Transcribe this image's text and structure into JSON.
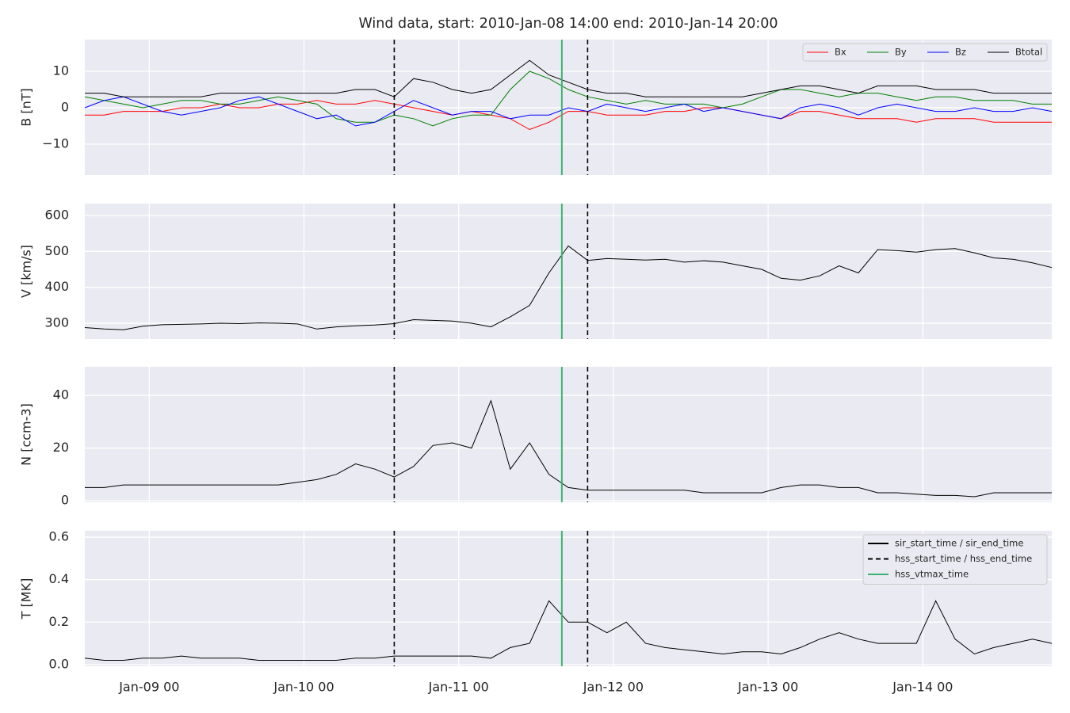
{
  "chart_data": [
    {
      "type": "line",
      "title": "Wind data, start: 2010-Jan-08 14:00  end: 2010-Jan-14 20:00",
      "ylabel": "B [nT]",
      "x": [
        "2010-01-08 14:00",
        "2010-01-08 17:00",
        "2010-01-08 20:00",
        "2010-01-08 23:00",
        "2010-01-09 02:00",
        "2010-01-09 05:00",
        "2010-01-09 08:00",
        "2010-01-09 11:00",
        "2010-01-09 14:00",
        "2010-01-09 17:00",
        "2010-01-09 20:00",
        "2010-01-09 23:00",
        "2010-01-10 02:00",
        "2010-01-10 05:00",
        "2010-01-10 08:00",
        "2010-01-10 11:00",
        "2010-01-10 14:00",
        "2010-01-10 17:00",
        "2010-01-10 20:00",
        "2010-01-10 23:00",
        "2010-01-11 02:00",
        "2010-01-11 05:00",
        "2010-01-11 08:00",
        "2010-01-11 11:00",
        "2010-01-11 14:00",
        "2010-01-11 17:00",
        "2010-01-11 20:00",
        "2010-01-11 23:00",
        "2010-01-12 02:00",
        "2010-01-12 05:00",
        "2010-01-12 08:00",
        "2010-01-12 11:00",
        "2010-01-12 14:00",
        "2010-01-12 17:00",
        "2010-01-12 20:00",
        "2010-01-12 23:00",
        "2010-01-13 02:00",
        "2010-01-13 05:00",
        "2010-01-13 08:00",
        "2010-01-13 11:00",
        "2010-01-13 14:00",
        "2010-01-13 17:00",
        "2010-01-13 20:00",
        "2010-01-13 23:00",
        "2010-01-14 02:00",
        "2010-01-14 05:00",
        "2010-01-14 08:00",
        "2010-01-14 11:00",
        "2010-01-14 14:00",
        "2010-01-14 17:00",
        "2010-01-14 20:00"
      ],
      "series": [
        {
          "name": "Bx",
          "color": "#ff0000",
          "values": [
            -2,
            -2,
            -1,
            -1,
            -1,
            0,
            0,
            1,
            0,
            0,
            1,
            1,
            2,
            1,
            1,
            2,
            1,
            0,
            -1,
            -2,
            -1,
            -2,
            -3,
            -6,
            -4,
            -1,
            -1,
            -2,
            -2,
            -2,
            -1,
            -1,
            0,
            0,
            -1,
            -2,
            -3,
            -1,
            -1,
            -2,
            -3,
            -3,
            -3,
            -4,
            -3,
            -3,
            -3,
            -4,
            -4,
            -4,
            -4
          ]
        },
        {
          "name": "By",
          "color": "#008000",
          "values": [
            3,
            2,
            1,
            0,
            1,
            2,
            2,
            1,
            1,
            2,
            3,
            2,
            1,
            -3,
            -4,
            -4,
            -2,
            -3,
            -5,
            -3,
            -2,
            -2,
            5,
            10,
            8,
            5,
            3,
            2,
            1,
            2,
            1,
            1,
            1,
            0,
            1,
            3,
            5,
            5,
            4,
            3,
            4,
            4,
            3,
            2,
            3,
            3,
            2,
            2,
            2,
            1,
            1
          ]
        },
        {
          "name": "Bz",
          "color": "#0000ff",
          "values": [
            0,
            2,
            3,
            1,
            -1,
            -2,
            -1,
            0,
            2,
            3,
            1,
            -1,
            -3,
            -2,
            -5,
            -4,
            -1,
            2,
            0,
            -2,
            -1,
            -1,
            -3,
            -2,
            -2,
            0,
            -1,
            1,
            0,
            -1,
            0,
            1,
            -1,
            0,
            -1,
            -2,
            -3,
            0,
            1,
            0,
            -2,
            0,
            1,
            0,
            -1,
            -1,
            0,
            -1,
            -1,
            0,
            -1
          ]
        },
        {
          "name": "Btotal",
          "color": "#000000",
          "values": [
            4,
            4,
            3,
            3,
            3,
            3,
            3,
            4,
            4,
            4,
            4,
            4,
            4,
            4,
            5,
            5,
            3,
            8,
            7,
            5,
            4,
            5,
            9,
            13,
            9,
            7,
            5,
            4,
            4,
            3,
            3,
            3,
            3,
            3,
            3,
            4,
            5,
            6,
            6,
            5,
            4,
            6,
            6,
            6,
            5,
            5,
            5,
            4,
            4,
            4,
            4
          ]
        }
      ],
      "xlim": [
        "2010-01-08 14:00",
        "2010-01-14 20:00"
      ],
      "xticks": [
        "2010-01-09 00:00",
        "2010-01-10 00:00",
        "2010-01-11 00:00",
        "2010-01-12 00:00",
        "2010-01-13 00:00",
        "2010-01-14 00:00"
      ],
      "ylim": [
        -18.5,
        18.7
      ],
      "yticks": [
        {
          "value": -10,
          "label": "−10"
        },
        0,
        10
      ],
      "grid": true,
      "legend": "upper right",
      "vlines": [
        {
          "x": "2010-01-10 14:00",
          "style": "dashed",
          "color": "#000000"
        },
        {
          "x": "2010-01-11 20:00",
          "style": "dashed",
          "color": "#000000"
        },
        {
          "x": "2010-01-11 16:00",
          "style": "solid",
          "color": "#3cb371"
        }
      ]
    },
    {
      "type": "line",
      "ylabel": "V [km/s]",
      "x": [
        "2010-01-08 14:00",
        "2010-01-08 17:00",
        "2010-01-08 20:00",
        "2010-01-08 23:00",
        "2010-01-09 02:00",
        "2010-01-09 05:00",
        "2010-01-09 08:00",
        "2010-01-09 11:00",
        "2010-01-09 14:00",
        "2010-01-09 17:00",
        "2010-01-09 20:00",
        "2010-01-09 23:00",
        "2010-01-10 02:00",
        "2010-01-10 05:00",
        "2010-01-10 08:00",
        "2010-01-10 11:00",
        "2010-01-10 14:00",
        "2010-01-10 17:00",
        "2010-01-10 20:00",
        "2010-01-10 23:00",
        "2010-01-11 02:00",
        "2010-01-11 05:00",
        "2010-01-11 08:00",
        "2010-01-11 11:00",
        "2010-01-11 14:00",
        "2010-01-11 17:00",
        "2010-01-11 20:00",
        "2010-01-11 23:00",
        "2010-01-12 02:00",
        "2010-01-12 05:00",
        "2010-01-12 08:00",
        "2010-01-12 11:00",
        "2010-01-12 14:00",
        "2010-01-12 17:00",
        "2010-01-12 20:00",
        "2010-01-12 23:00",
        "2010-01-13 02:00",
        "2010-01-13 05:00",
        "2010-01-13 08:00",
        "2010-01-13 11:00",
        "2010-01-13 14:00",
        "2010-01-13 17:00",
        "2010-01-13 20:00",
        "2010-01-13 23:00",
        "2010-01-14 02:00",
        "2010-01-14 05:00",
        "2010-01-14 08:00",
        "2010-01-14 11:00",
        "2010-01-14 14:00",
        "2010-01-14 17:00",
        "2010-01-14 20:00"
      ],
      "series": [
        {
          "color": "#000000",
          "values": [
            288,
            284,
            282,
            292,
            296,
            297,
            298,
            300,
            299,
            301,
            300,
            298,
            284,
            290,
            293,
            295,
            299,
            310,
            308,
            306,
            300,
            290,
            318,
            350,
            440,
            515,
            475,
            480,
            478,
            476,
            478,
            470,
            474,
            470,
            460,
            450,
            425,
            420,
            432,
            460,
            440,
            505,
            502,
            498,
            505,
            508,
            496,
            482,
            478,
            468,
            455
          ]
        }
      ],
      "xlim": [
        "2010-01-08 14:00",
        "2010-01-14 20:00"
      ],
      "xticks": [
        "2010-01-09 00:00",
        "2010-01-10 00:00",
        "2010-01-11 00:00",
        "2010-01-12 00:00",
        "2010-01-13 00:00",
        "2010-01-14 00:00"
      ],
      "ylim": [
        256,
        633
      ],
      "yticks": [
        300,
        400,
        500,
        600
      ],
      "grid": true,
      "vlines": [
        {
          "x": "2010-01-10 14:00",
          "style": "dashed",
          "color": "#000000"
        },
        {
          "x": "2010-01-11 20:00",
          "style": "dashed",
          "color": "#000000"
        },
        {
          "x": "2010-01-11 16:00",
          "style": "solid",
          "color": "#3cb371"
        }
      ]
    },
    {
      "type": "line",
      "ylabel": "N [ccm-3]",
      "x": [
        "2010-01-08 14:00",
        "2010-01-08 17:00",
        "2010-01-08 20:00",
        "2010-01-08 23:00",
        "2010-01-09 02:00",
        "2010-01-09 05:00",
        "2010-01-09 08:00",
        "2010-01-09 11:00",
        "2010-01-09 14:00",
        "2010-01-09 17:00",
        "2010-01-09 20:00",
        "2010-01-09 23:00",
        "2010-01-10 02:00",
        "2010-01-10 05:00",
        "2010-01-10 08:00",
        "2010-01-10 11:00",
        "2010-01-10 14:00",
        "2010-01-10 17:00",
        "2010-01-10 20:00",
        "2010-01-10 23:00",
        "2010-01-11 02:00",
        "2010-01-11 05:00",
        "2010-01-11 08:00",
        "2010-01-11 11:00",
        "2010-01-11 14:00",
        "2010-01-11 17:00",
        "2010-01-11 20:00",
        "2010-01-11 23:00",
        "2010-01-12 02:00",
        "2010-01-12 05:00",
        "2010-01-12 08:00",
        "2010-01-12 11:00",
        "2010-01-12 14:00",
        "2010-01-12 17:00",
        "2010-01-12 20:00",
        "2010-01-12 23:00",
        "2010-01-13 02:00",
        "2010-01-13 05:00",
        "2010-01-13 08:00",
        "2010-01-13 11:00",
        "2010-01-13 14:00",
        "2010-01-13 17:00",
        "2010-01-13 20:00",
        "2010-01-13 23:00",
        "2010-01-14 02:00",
        "2010-01-14 05:00",
        "2010-01-14 08:00",
        "2010-01-14 11:00",
        "2010-01-14 14:00",
        "2010-01-14 17:00",
        "2010-01-14 20:00"
      ],
      "series": [
        {
          "color": "#000000",
          "values": [
            5,
            5,
            6,
            6,
            6,
            6,
            6,
            6,
            6,
            6,
            6,
            7,
            8,
            10,
            14,
            12,
            9,
            13,
            21,
            22,
            20,
            38,
            12,
            22,
            10,
            5,
            4,
            4,
            4,
            4,
            4,
            4,
            3,
            3,
            3,
            3,
            5,
            6,
            6,
            5,
            5,
            3,
            3,
            2.5,
            2,
            2,
            1.5,
            3,
            3,
            3,
            3
          ]
        }
      ],
      "xlim": [
        "2010-01-08 14:00",
        "2010-01-14 20:00"
      ],
      "xticks": [
        "2010-01-09 00:00",
        "2010-01-10 00:00",
        "2010-01-11 00:00",
        "2010-01-12 00:00",
        "2010-01-13 00:00",
        "2010-01-14 00:00"
      ],
      "ylim": [
        -0.6,
        50.9
      ],
      "yticks": [
        0,
        20,
        40
      ],
      "grid": true,
      "vlines": [
        {
          "x": "2010-01-10 14:00",
          "style": "dashed",
          "color": "#000000"
        },
        {
          "x": "2010-01-11 20:00",
          "style": "dashed",
          "color": "#000000"
        },
        {
          "x": "2010-01-11 16:00",
          "style": "solid",
          "color": "#3cb371"
        }
      ]
    },
    {
      "type": "line",
      "ylabel": "T [MK]",
      "x": [
        "2010-01-08 14:00",
        "2010-01-08 17:00",
        "2010-01-08 20:00",
        "2010-01-08 23:00",
        "2010-01-09 02:00",
        "2010-01-09 05:00",
        "2010-01-09 08:00",
        "2010-01-09 11:00",
        "2010-01-09 14:00",
        "2010-01-09 17:00",
        "2010-01-09 20:00",
        "2010-01-09 23:00",
        "2010-01-10 02:00",
        "2010-01-10 05:00",
        "2010-01-10 08:00",
        "2010-01-10 11:00",
        "2010-01-10 14:00",
        "2010-01-10 17:00",
        "2010-01-10 20:00",
        "2010-01-10 23:00",
        "2010-01-11 02:00",
        "2010-01-11 05:00",
        "2010-01-11 08:00",
        "2010-01-11 11:00",
        "2010-01-11 14:00",
        "2010-01-11 17:00",
        "2010-01-11 20:00",
        "2010-01-11 23:00",
        "2010-01-12 02:00",
        "2010-01-12 05:00",
        "2010-01-12 08:00",
        "2010-01-12 11:00",
        "2010-01-12 14:00",
        "2010-01-12 17:00",
        "2010-01-12 20:00",
        "2010-01-12 23:00",
        "2010-01-13 02:00",
        "2010-01-13 05:00",
        "2010-01-13 08:00",
        "2010-01-13 11:00",
        "2010-01-13 14:00",
        "2010-01-13 17:00",
        "2010-01-13 20:00",
        "2010-01-13 23:00",
        "2010-01-14 02:00",
        "2010-01-14 05:00",
        "2010-01-14 08:00",
        "2010-01-14 11:00",
        "2010-01-14 14:00",
        "2010-01-14 17:00",
        "2010-01-14 20:00"
      ],
      "series": [
        {
          "color": "#000000",
          "values": [
            0.03,
            0.02,
            0.02,
            0.03,
            0.03,
            0.04,
            0.03,
            0.03,
            0.03,
            0.02,
            0.02,
            0.02,
            0.02,
            0.02,
            0.03,
            0.03,
            0.04,
            0.04,
            0.04,
            0.04,
            0.04,
            0.03,
            0.08,
            0.1,
            0.3,
            0.2,
            0.2,
            0.15,
            0.2,
            0.1,
            0.08,
            0.07,
            0.06,
            0.05,
            0.06,
            0.06,
            0.05,
            0.08,
            0.12,
            0.15,
            0.12,
            0.1,
            0.1,
            0.1,
            0.3,
            0.12,
            0.05,
            0.08,
            0.1,
            0.12,
            0.1
          ]
        }
      ],
      "xlim": [
        "2010-01-08 14:00",
        "2010-01-14 20:00"
      ],
      "xticks": [
        {
          "value": "2010-01-09 00:00",
          "label": "Jan-09 00"
        },
        {
          "value": "2010-01-10 00:00",
          "label": "Jan-10 00"
        },
        {
          "value": "2010-01-11 00:00",
          "label": "Jan-11 00"
        },
        {
          "value": "2010-01-12 00:00",
          "label": "Jan-12 00"
        },
        {
          "value": "2010-01-13 00:00",
          "label": "Jan-13 00"
        },
        {
          "value": "2010-01-14 00:00",
          "label": "Jan-14 00"
        }
      ],
      "ylim": [
        -0.008,
        0.63
      ],
      "yticks": [
        {
          "value": 0,
          "label": "0.0"
        },
        0.2,
        0.4,
        0.6
      ],
      "grid": true,
      "vlines": [
        {
          "x": "2010-01-10 14:00",
          "style": "dashed",
          "color": "#000000"
        },
        {
          "x": "2010-01-11 20:00",
          "style": "dashed",
          "color": "#000000"
        },
        {
          "x": "2010-01-11 16:00",
          "style": "solid",
          "color": "#3cb371"
        }
      ],
      "legend": {
        "position": "upper right",
        "entries": [
          {
            "name": "sir_start_time / sir_end_time",
            "style": "solid",
            "color": "#000000"
          },
          {
            "name": "hss_start_time / hss_end_time",
            "style": "dashed",
            "color": "#000000"
          },
          {
            "name": "hss_vtmax_time",
            "style": "solid",
            "color": "#3cb371"
          }
        ]
      }
    }
  ]
}
